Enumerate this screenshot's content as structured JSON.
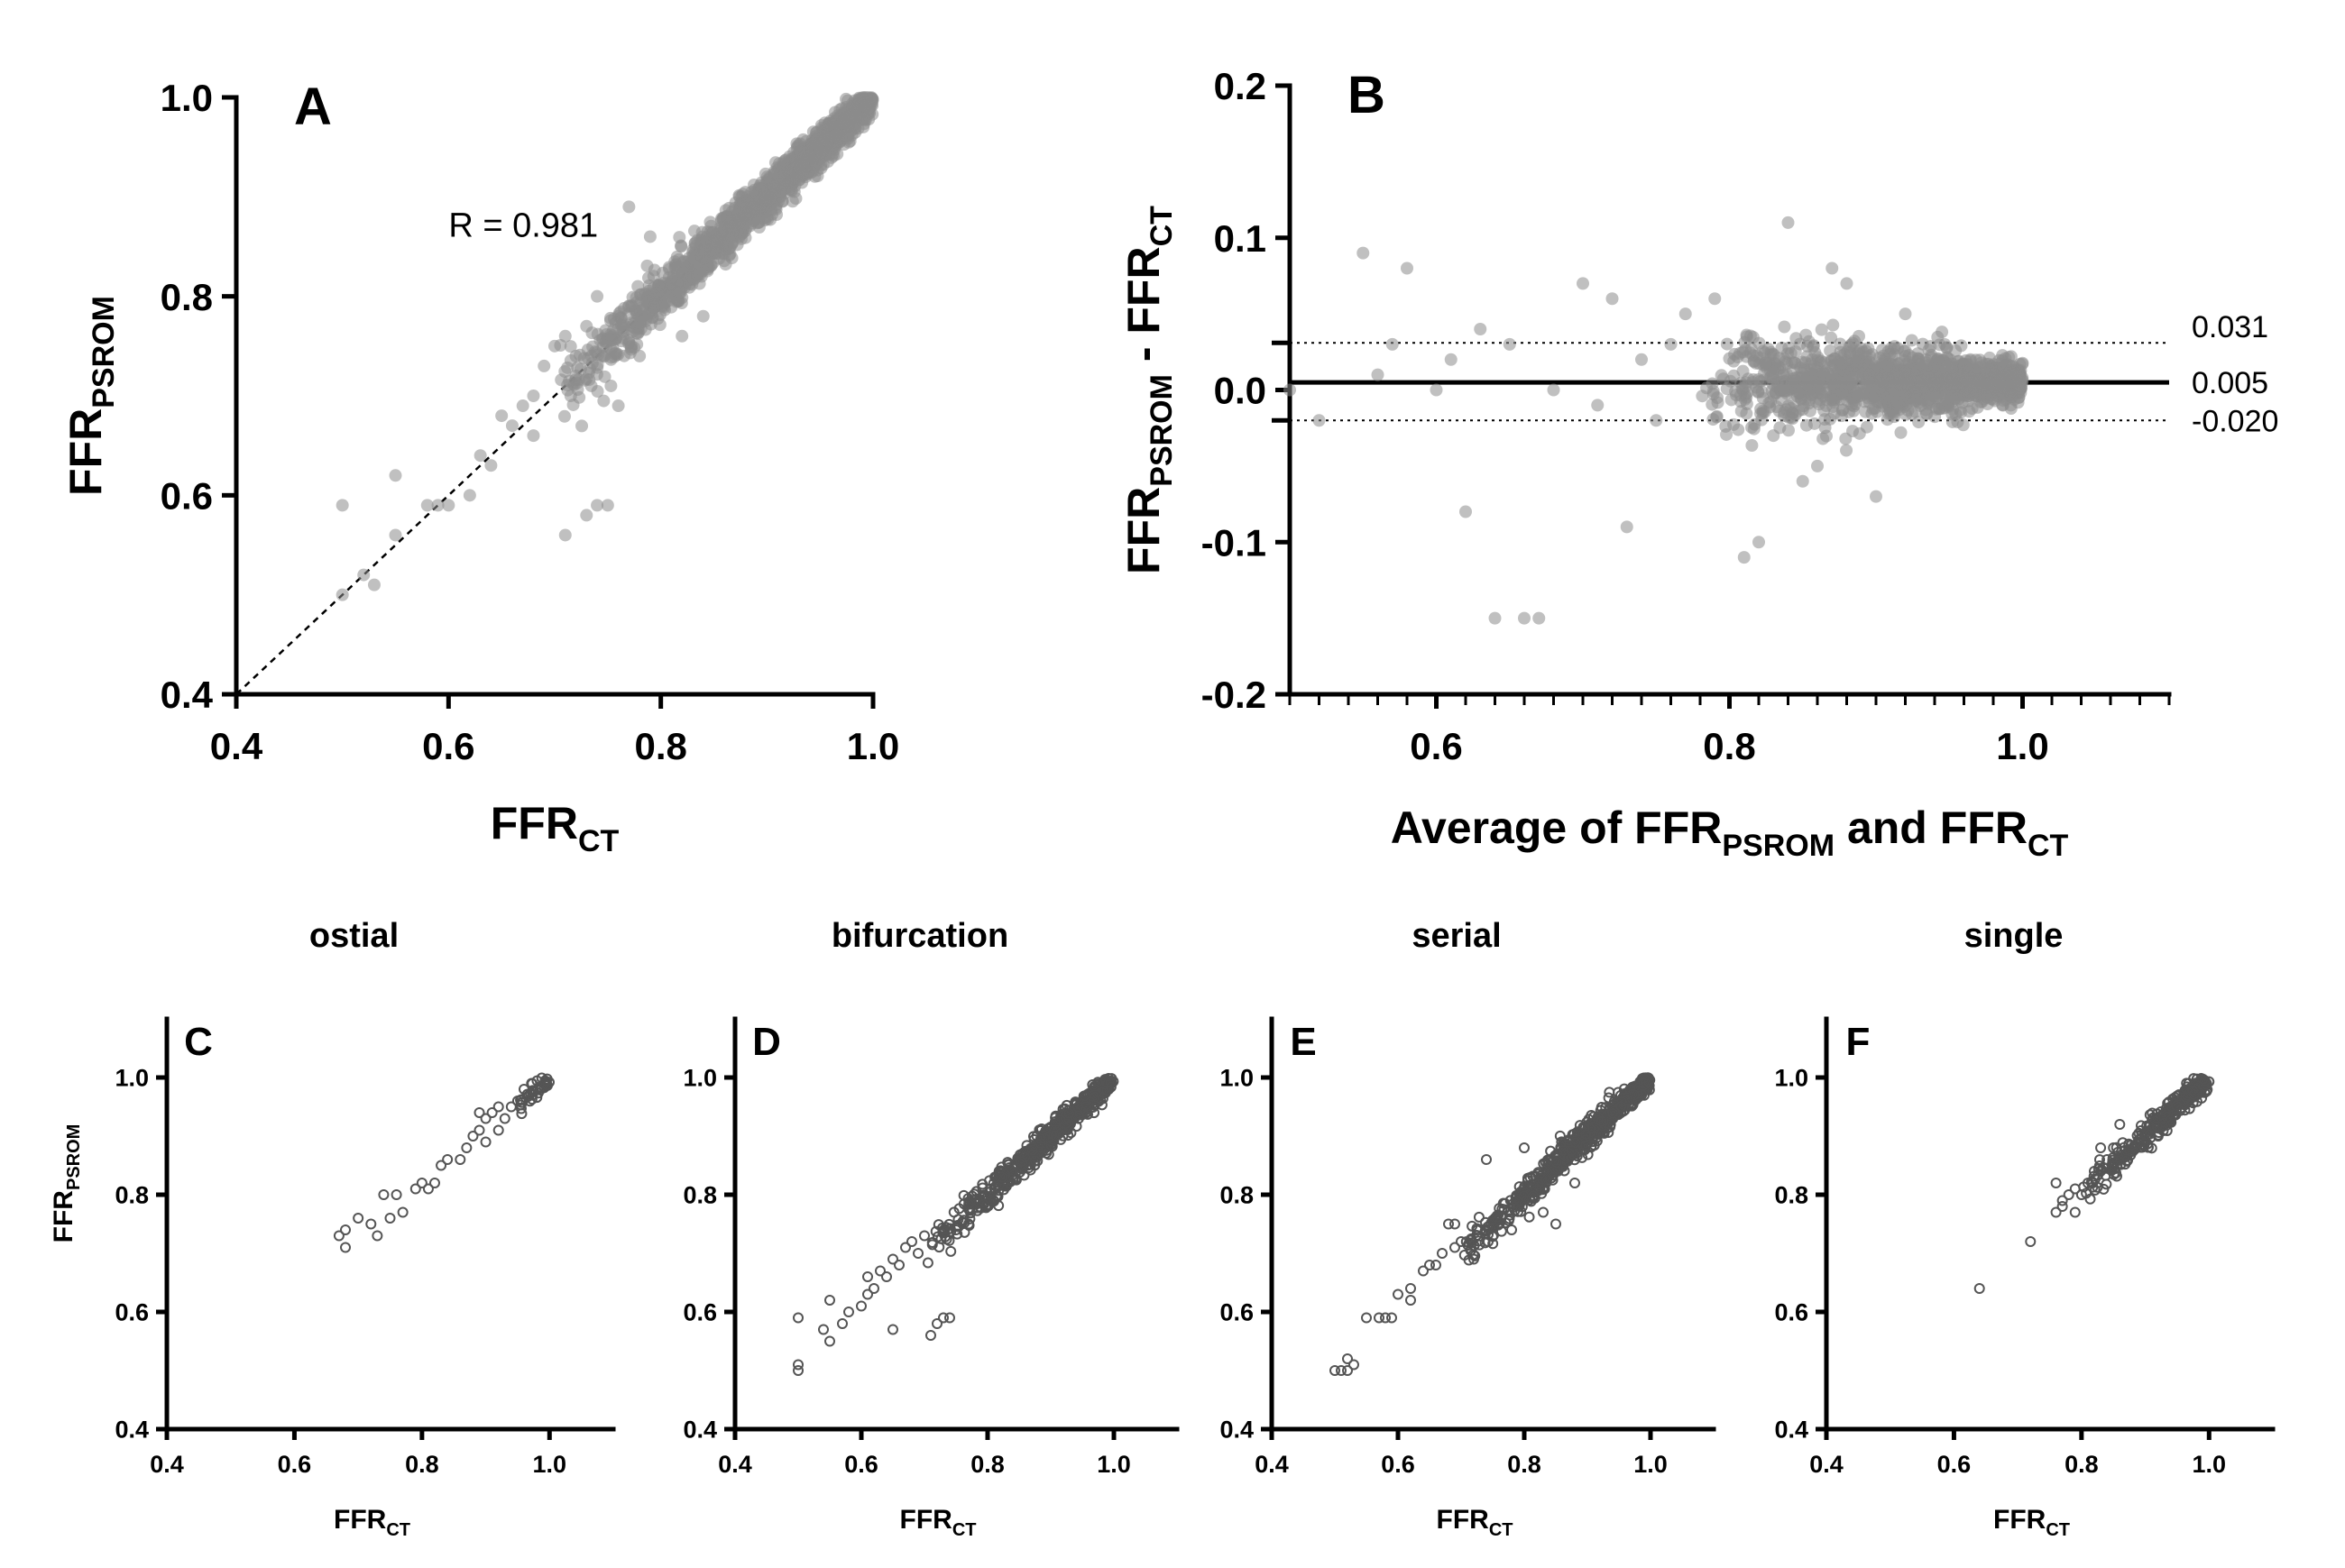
{
  "colors": {
    "point_fill": "#8c8c8c",
    "open_point_stroke": "#555555",
    "axis": "#000000"
  },
  "chart_data": [
    {
      "id": "A",
      "panel_letter": "A",
      "type": "scatter",
      "x_var": "FFR",
      "x_sub": "CT",
      "y_var": "FFR",
      "y_sub": "PSROM",
      "xlim": [
        0.4,
        1.0
      ],
      "ylim": [
        0.4,
        1.0
      ],
      "xticks": [
        "0.4",
        "0.6",
        "0.8",
        "1.0"
      ],
      "yticks": [
        "0.4",
        "0.6",
        "0.8",
        "1.0"
      ],
      "annotation": "R = 0.981",
      "identity_line": true,
      "cluster_x": [
        0.7,
        1.0
      ],
      "cluster_sd": 0.012,
      "n_cluster": 1500,
      "points": [
        [
          0.5,
          0.5
        ],
        [
          0.5,
          0.59
        ],
        [
          0.52,
          0.52
        ],
        [
          0.53,
          0.51
        ],
        [
          0.55,
          0.56
        ],
        [
          0.55,
          0.62
        ],
        [
          0.58,
          0.59
        ],
        [
          0.59,
          0.59
        ],
        [
          0.6,
          0.59
        ],
        [
          0.62,
          0.6
        ],
        [
          0.63,
          0.64
        ],
        [
          0.64,
          0.63
        ],
        [
          0.65,
          0.68
        ],
        [
          0.66,
          0.67
        ],
        [
          0.67,
          0.69
        ],
        [
          0.68,
          0.7
        ],
        [
          0.68,
          0.66
        ],
        [
          0.69,
          0.73
        ],
        [
          0.7,
          0.75
        ],
        [
          0.71,
          0.56
        ],
        [
          0.73,
          0.58
        ],
        [
          0.74,
          0.59
        ],
        [
          0.75,
          0.59
        ],
        [
          0.72,
          0.74
        ],
        [
          0.73,
          0.77
        ],
        [
          0.74,
          0.8
        ],
        [
          0.76,
          0.78
        ],
        [
          0.77,
          0.89
        ],
        [
          0.78,
          0.74
        ],
        [
          0.76,
          0.69
        ],
        [
          0.82,
          0.76
        ],
        [
          0.84,
          0.78
        ],
        [
          0.72,
          0.72
        ],
        [
          0.71,
          0.76
        ],
        [
          0.79,
          0.86
        ]
      ]
    },
    {
      "id": "B",
      "panel_letter": "B",
      "type": "scatter",
      "x_label": "Average of FFR",
      "x_sub1": "PSROM",
      "x_mid": " and FFR",
      "x_sub2": "CT",
      "y_var1": "FFR",
      "y_sub1": "PSROM",
      "y_mid": " - FFR",
      "y_sub2": "CT",
      "xlim": [
        0.5,
        1.1
      ],
      "ylim": [
        -0.2,
        0.2
      ],
      "xticks": [
        "0.6",
        "0.8",
        "1.0"
      ],
      "yticks": [
        "-0.2",
        "-0.1",
        "0.0",
        "0.1",
        "0.2"
      ],
      "mean_line": 0.005,
      "upper_loa": 0.031,
      "lower_loa": -0.02,
      "mean_label": "0.005",
      "upper_label": "0.031",
      "lower_label": "-0.020",
      "cluster_x": [
        0.78,
        1.0
      ],
      "cluster_sd": 0.012,
      "n_cluster": 1400,
      "points": [
        [
          0.5,
          0.0
        ],
        [
          0.52,
          -0.02
        ],
        [
          0.55,
          0.09
        ],
        [
          0.56,
          0.01
        ],
        [
          0.58,
          0.08
        ],
        [
          0.57,
          0.03
        ],
        [
          0.6,
          0.0
        ],
        [
          0.61,
          0.02
        ],
        [
          0.62,
          -0.08
        ],
        [
          0.63,
          0.04
        ],
        [
          0.64,
          -0.15
        ],
        [
          0.66,
          -0.15
        ],
        [
          0.67,
          -0.15
        ],
        [
          0.65,
          0.03
        ],
        [
          0.68,
          0.0
        ],
        [
          0.7,
          0.07
        ],
        [
          0.72,
          0.06
        ],
        [
          0.73,
          -0.09
        ],
        [
          0.74,
          0.02
        ],
        [
          0.75,
          -0.02
        ],
        [
          0.77,
          0.05
        ],
        [
          0.79,
          0.06
        ],
        [
          0.81,
          -0.11
        ],
        [
          0.82,
          -0.1
        ],
        [
          0.84,
          0.11
        ],
        [
          0.85,
          -0.06
        ],
        [
          0.87,
          0.08
        ],
        [
          0.88,
          0.07
        ],
        [
          0.9,
          -0.07
        ],
        [
          0.92,
          0.05
        ],
        [
          0.86,
          -0.05
        ],
        [
          0.83,
          -0.03
        ],
        [
          0.76,
          0.03
        ],
        [
          0.71,
          -0.01
        ]
      ]
    },
    {
      "id": "C",
      "panel_letter": "C",
      "title": "ostial",
      "type": "scatter",
      "x_var": "FFR",
      "x_sub": "CT",
      "y_var": "FFR",
      "y_sub": "PSROM",
      "xlim": [
        0.4,
        1.1
      ],
      "ylim": [
        0.4,
        1.1
      ],
      "xticks": [
        "0.4",
        "0.6",
        "0.8",
        "1.0"
      ],
      "yticks": [
        "0.4",
        "0.6",
        "0.8",
        "1.0"
      ],
      "cluster_x": [
        0.95,
        1.0
      ],
      "cluster_sd": 0.006,
      "n_cluster": 40,
      "points": [
        [
          0.67,
          0.73
        ],
        [
          0.68,
          0.71
        ],
        [
          0.68,
          0.74
        ],
        [
          0.7,
          0.76
        ],
        [
          0.72,
          0.75
        ],
        [
          0.73,
          0.73
        ],
        [
          0.74,
          0.8
        ],
        [
          0.75,
          0.76
        ],
        [
          0.76,
          0.8
        ],
        [
          0.77,
          0.77
        ],
        [
          0.79,
          0.81
        ],
        [
          0.8,
          0.82
        ],
        [
          0.81,
          0.81
        ],
        [
          0.82,
          0.82
        ],
        [
          0.83,
          0.85
        ],
        [
          0.84,
          0.86
        ],
        [
          0.86,
          0.86
        ],
        [
          0.87,
          0.88
        ],
        [
          0.88,
          0.9
        ],
        [
          0.89,
          0.91
        ],
        [
          0.9,
          0.93
        ],
        [
          0.9,
          0.89
        ],
        [
          0.91,
          0.94
        ],
        [
          0.92,
          0.91
        ],
        [
          0.93,
          0.93
        ],
        [
          0.94,
          0.95
        ],
        [
          0.95,
          0.96
        ],
        [
          0.96,
          0.98
        ],
        [
          0.92,
          0.95
        ],
        [
          0.89,
          0.94
        ]
      ]
    },
    {
      "id": "D",
      "panel_letter": "D",
      "title": "bifurcation",
      "type": "scatter",
      "x_var": "FFR",
      "x_sub": "CT",
      "xlim": [
        0.4,
        1.1
      ],
      "ylim": [
        0.4,
        1.1
      ],
      "xticks": [
        "0.4",
        "0.6",
        "0.8",
        "1.0"
      ],
      "yticks": [
        "0.4",
        "0.6",
        "0.8",
        "1.0"
      ],
      "cluster_x": [
        0.7,
        1.0
      ],
      "cluster_sd": 0.013,
      "n_cluster": 500,
      "points": [
        [
          0.5,
          0.5
        ],
        [
          0.5,
          0.51
        ],
        [
          0.5,
          0.59
        ],
        [
          0.54,
          0.57
        ],
        [
          0.55,
          0.55
        ],
        [
          0.55,
          0.62
        ],
        [
          0.57,
          0.58
        ],
        [
          0.58,
          0.6
        ],
        [
          0.6,
          0.61
        ],
        [
          0.61,
          0.63
        ],
        [
          0.61,
          0.66
        ],
        [
          0.62,
          0.64
        ],
        [
          0.63,
          0.67
        ],
        [
          0.64,
          0.66
        ],
        [
          0.65,
          0.57
        ],
        [
          0.65,
          0.69
        ],
        [
          0.66,
          0.68
        ],
        [
          0.67,
          0.71
        ],
        [
          0.68,
          0.72
        ],
        [
          0.69,
          0.7
        ],
        [
          0.7,
          0.73
        ],
        [
          0.71,
          0.56
        ],
        [
          0.72,
          0.58
        ],
        [
          0.73,
          0.59
        ],
        [
          0.74,
          0.59
        ],
        [
          0.75,
          0.74
        ],
        [
          0.77,
          0.75
        ]
      ]
    },
    {
      "id": "E",
      "panel_letter": "E",
      "title": "serial",
      "type": "scatter",
      "x_var": "FFR",
      "x_sub": "CT",
      "xlim": [
        0.4,
        1.1
      ],
      "ylim": [
        0.4,
        1.1
      ],
      "xticks": [
        "0.4",
        "0.6",
        "0.8",
        "1.0"
      ],
      "yticks": [
        "0.4",
        "0.6",
        "0.8",
        "1.0"
      ],
      "cluster_x": [
        0.7,
        1.0
      ],
      "cluster_sd": 0.013,
      "n_cluster": 650,
      "points": [
        [
          0.5,
          0.5
        ],
        [
          0.51,
          0.5
        ],
        [
          0.52,
          0.52
        ],
        [
          0.52,
          0.5
        ],
        [
          0.53,
          0.51
        ],
        [
          0.55,
          0.59
        ],
        [
          0.57,
          0.59
        ],
        [
          0.58,
          0.59
        ],
        [
          0.59,
          0.59
        ],
        [
          0.6,
          0.63
        ],
        [
          0.62,
          0.64
        ],
        [
          0.62,
          0.62
        ],
        [
          0.64,
          0.67
        ],
        [
          0.65,
          0.68
        ],
        [
          0.66,
          0.68
        ],
        [
          0.67,
          0.7
        ],
        [
          0.68,
          0.75
        ],
        [
          0.69,
          0.75
        ],
        [
          0.69,
          0.71
        ],
        [
          0.7,
          0.72
        ],
        [
          0.72,
          0.69
        ],
        [
          0.74,
          0.86
        ],
        [
          0.8,
          0.88
        ],
        [
          0.78,
          0.74
        ],
        [
          0.83,
          0.77
        ],
        [
          0.85,
          0.75
        ],
        [
          0.88,
          0.82
        ]
      ]
    },
    {
      "id": "F",
      "panel_letter": "F",
      "title": "single",
      "type": "scatter",
      "x_var": "FFR",
      "x_sub": "CT",
      "xlim": [
        0.4,
        1.1
      ],
      "ylim": [
        0.4,
        1.1
      ],
      "xticks": [
        "0.4",
        "0.6",
        "0.8",
        "1.0"
      ],
      "yticks": [
        "0.4",
        "0.6",
        "0.8",
        "1.0"
      ],
      "cluster_x": [
        0.8,
        1.0
      ],
      "cluster_sd": 0.01,
      "n_cluster": 300,
      "points": [
        [
          0.64,
          0.64
        ],
        [
          0.72,
          0.72
        ],
        [
          0.76,
          0.77
        ],
        [
          0.76,
          0.82
        ],
        [
          0.77,
          0.78
        ],
        [
          0.77,
          0.79
        ],
        [
          0.78,
          0.8
        ],
        [
          0.79,
          0.81
        ],
        [
          0.79,
          0.77
        ],
        [
          0.8,
          0.8
        ],
        [
          0.81,
          0.82
        ],
        [
          0.82,
          0.84
        ],
        [
          0.83,
          0.88
        ],
        [
          0.84,
          0.86
        ],
        [
          0.85,
          0.88
        ],
        [
          0.86,
          0.92
        ]
      ]
    }
  ]
}
